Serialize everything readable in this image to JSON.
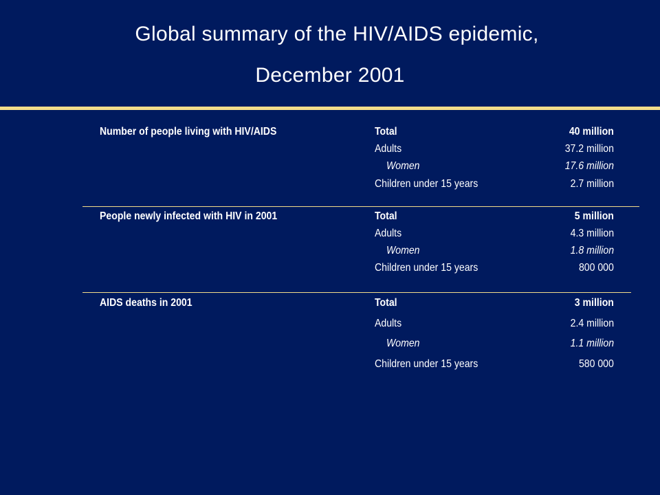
{
  "title": {
    "line1": "Global summary of the HIV/AIDS epidemic,",
    "line2": "December 2001"
  },
  "sections": [
    {
      "heading": "Number of people living with HIV/AIDS",
      "rows": [
        {
          "label": "Total",
          "value": "40 million"
        },
        {
          "label": "Adults",
          "value": "37.2 million"
        },
        {
          "label": "Women",
          "value": "17.6 million"
        },
        {
          "label": "Children under 15 years",
          "value": "2.7 million"
        }
      ]
    },
    {
      "heading": "People newly infected with HIV in 2001",
      "rows": [
        {
          "label": "Total",
          "value": "5 million"
        },
        {
          "label": "Adults",
          "value": "4.3 million"
        },
        {
          "label": "Women",
          "value": "1.8 million"
        },
        {
          "label": "Children under 15 years",
          "value": "800 000"
        }
      ]
    },
    {
      "heading": "AIDS deaths in 2001",
      "rows": [
        {
          "label": "Total",
          "value": "3 million"
        },
        {
          "label": "Adults",
          "value": "2.4 million"
        },
        {
          "label": "Women",
          "value": "1.1 million"
        },
        {
          "label": "Children under 15 years",
          "value": "580 000"
        }
      ]
    }
  ]
}
